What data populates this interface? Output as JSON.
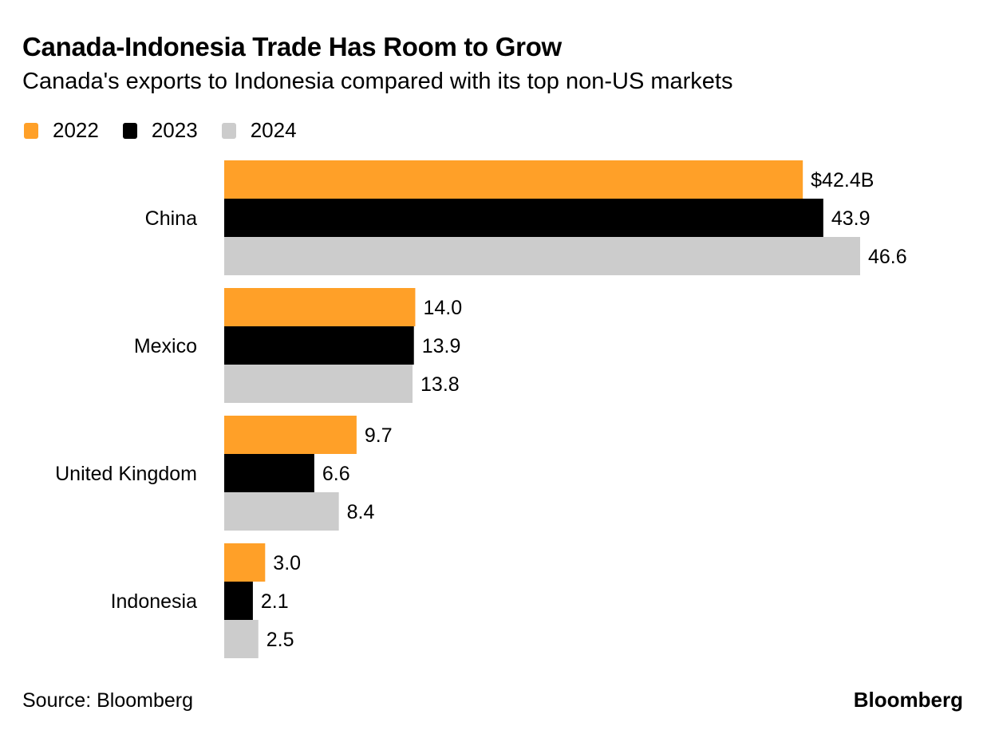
{
  "chart_data": {
    "type": "bar",
    "orientation": "horizontal",
    "title": "Canada-Indonesia Trade Has Room to Grow",
    "subtitle": "Canada's exports to Indonesia compared with its top non-US markets",
    "categories": [
      "China",
      "Mexico",
      "United Kingdom",
      "Indonesia"
    ],
    "series": [
      {
        "name": "2022",
        "color": "#FFA028",
        "values": [
          42.4,
          14.0,
          9.7,
          3.0
        ],
        "labels": [
          "$42.4B",
          "14.0",
          "9.7",
          "3.0"
        ]
      },
      {
        "name": "2023",
        "color": "#000000",
        "values": [
          43.9,
          13.9,
          6.6,
          2.1
        ],
        "labels": [
          "43.9",
          "13.9",
          "6.6",
          "2.1"
        ]
      },
      {
        "name": "2024",
        "color": "#CCCCCC",
        "values": [
          46.6,
          13.8,
          8.4,
          2.5
        ],
        "labels": [
          "46.6",
          "13.8",
          "8.4",
          "2.5"
        ]
      }
    ],
    "unit": "USD billions",
    "xlim": [
      0,
      46.6
    ],
    "grid": false,
    "legend_position": "top-left",
    "xlabel": "",
    "ylabel": ""
  },
  "footer": {
    "source": "Source: Bloomberg",
    "brand": "Bloomberg"
  }
}
